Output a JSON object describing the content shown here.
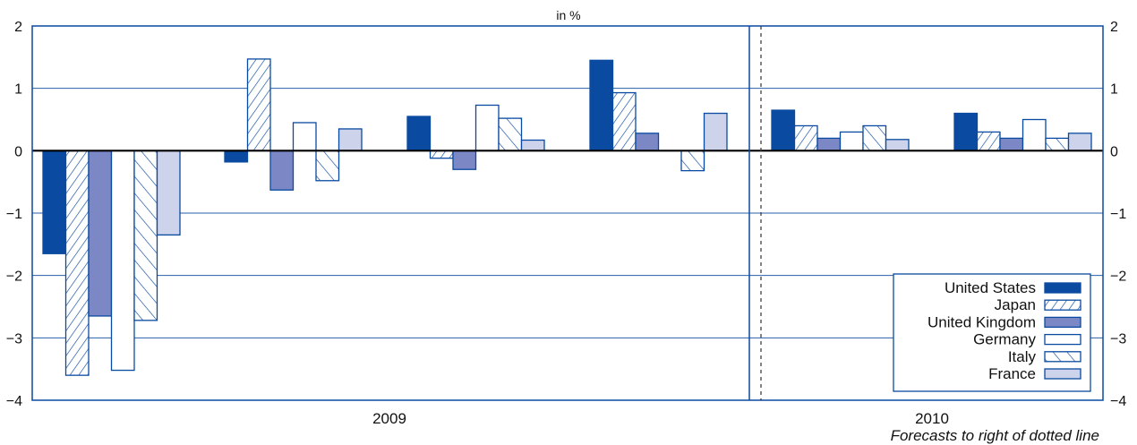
{
  "chart_data": {
    "type": "bar",
    "unit_label": "in %",
    "ylim": [
      -4,
      2
    ],
    "yticks": [
      "2",
      "1",
      "0",
      "−1",
      "−2",
      "−3",
      "−4"
    ],
    "grid": true,
    "legend_position": "bottom-right",
    "categories": [
      "2009",
      "",
      "",
      "",
      "2010",
      ""
    ],
    "category_labels": [
      "2009",
      "2010"
    ],
    "forecast_note": "Forecasts to right of dotted line",
    "series": [
      {
        "name": "United States",
        "values": [
          -1.65,
          -0.18,
          0.55,
          1.45,
          0.65,
          0.6
        ],
        "fill": "#0a4aa0",
        "pattern": "solid"
      },
      {
        "name": "Japan",
        "values": [
          -3.6,
          1.47,
          -0.12,
          0.93,
          0.4,
          0.3
        ],
        "fill": "#ffffff",
        "pattern": "forward-hatch"
      },
      {
        "name": "United Kingdom",
        "values": [
          -2.65,
          -0.63,
          -0.3,
          0.28,
          0.2,
          0.2
        ],
        "fill": "#7b88c5",
        "pattern": "solid"
      },
      {
        "name": "Germany",
        "values": [
          -3.52,
          0.45,
          0.73,
          0.0,
          0.3,
          0.5
        ],
        "fill": "#ffffff",
        "pattern": "solid"
      },
      {
        "name": "Italy",
        "values": [
          -2.72,
          -0.48,
          0.52,
          -0.32,
          0.4,
          0.2
        ],
        "fill": "#ffffff",
        "pattern": "back-hatch"
      },
      {
        "name": "France",
        "values": [
          -1.35,
          0.35,
          0.17,
          0.6,
          0.18,
          0.28
        ],
        "fill": "#ccd3ea",
        "pattern": "solid"
      }
    ],
    "colors": {
      "border": "#0a4aa0",
      "grid": "#2a5fa8",
      "zero_line": "#000000"
    }
  }
}
